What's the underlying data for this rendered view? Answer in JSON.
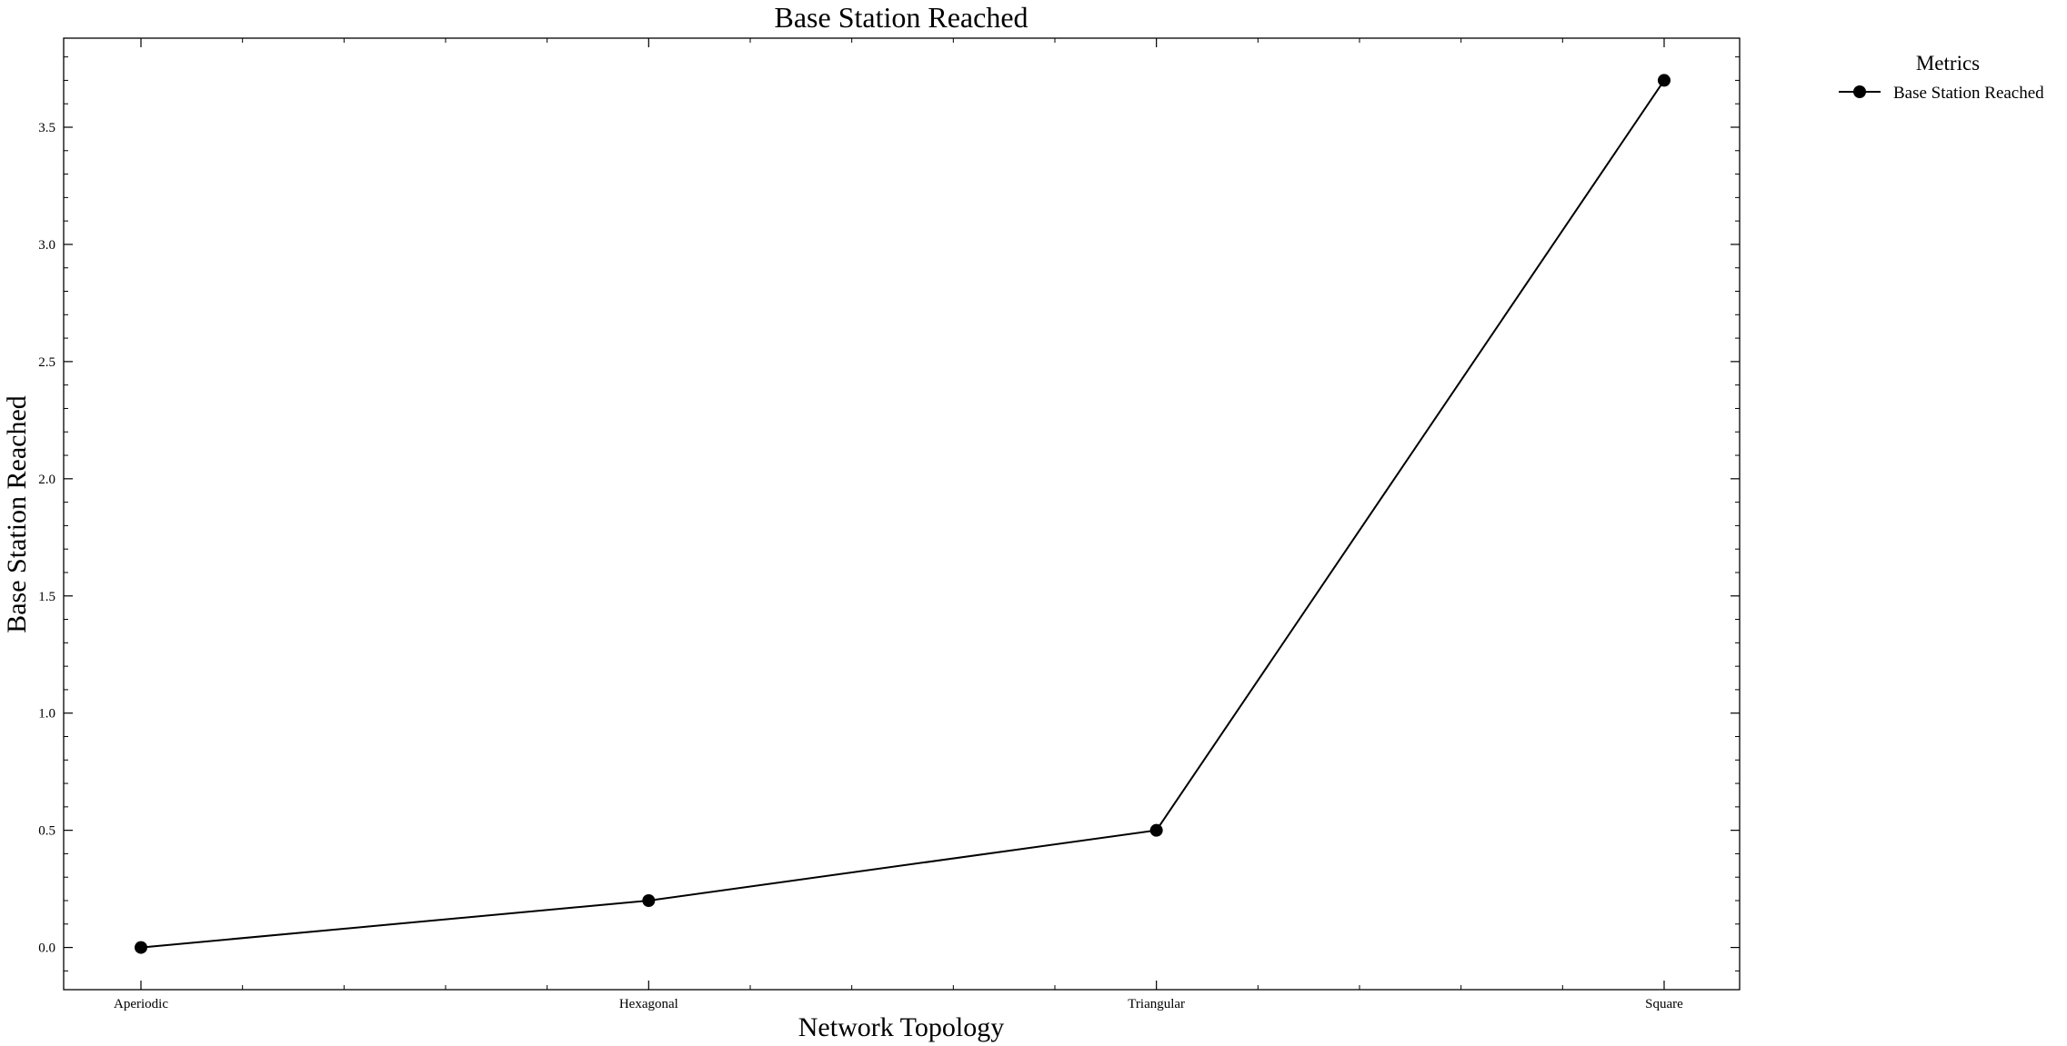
{
  "chart_data": {
    "type": "line",
    "title": "Base Station Reached",
    "xlabel": "Network Topology",
    "ylabel": "Base Station Reached",
    "categories": [
      "Aperiodic",
      "Hexagonal",
      "Triangular",
      "Square"
    ],
    "series": [
      {
        "name": "Base Station Reached",
        "values": [
          0.0,
          0.2,
          0.5,
          3.7
        ],
        "color": "#000000",
        "marker": "circle"
      }
    ],
    "ylim": [
      -0.18,
      3.88
    ],
    "yticks": [
      "0.0",
      "0.5",
      "1.0",
      "1.5",
      "2.0",
      "2.5",
      "3.0",
      "3.5"
    ],
    "grid": false,
    "legend": {
      "title": "Metrics",
      "placement": "outside-top-right"
    }
  }
}
